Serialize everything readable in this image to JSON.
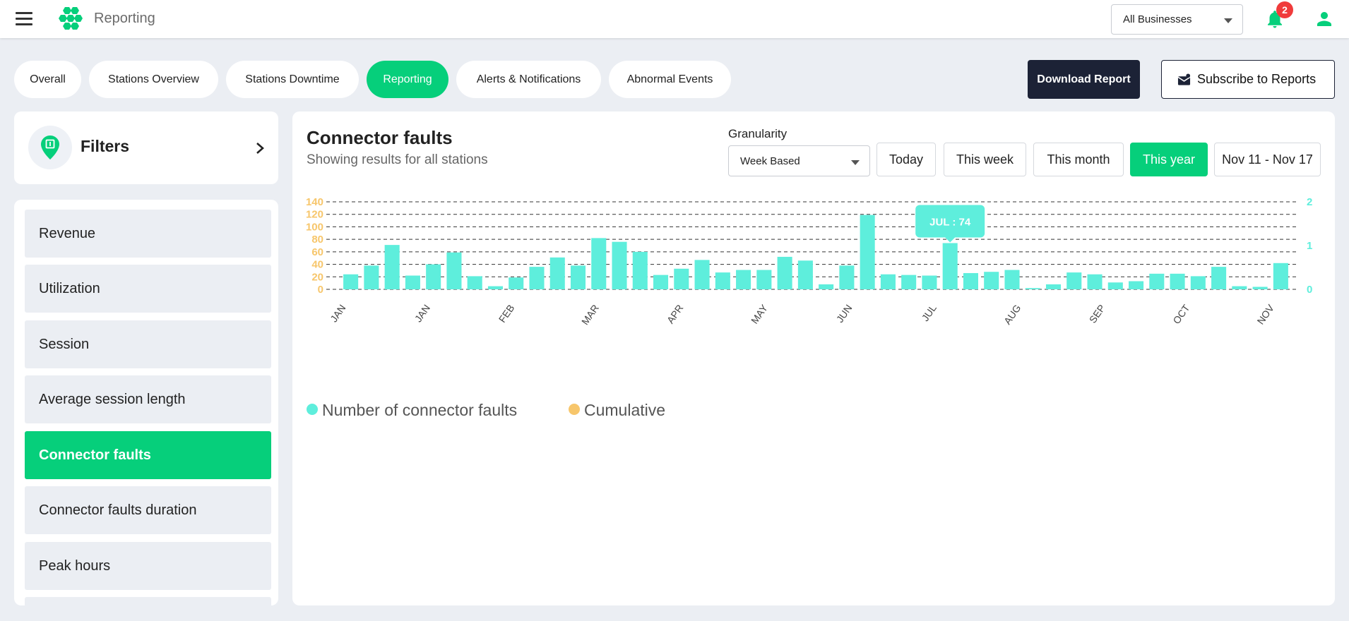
{
  "header": {
    "app_title": "Reporting",
    "business_select": "All Businesses",
    "notification_count": "2"
  },
  "tabs": [
    {
      "label": "Overall",
      "active": false
    },
    {
      "label": "Stations Overview",
      "active": false
    },
    {
      "label": "Stations Downtime",
      "active": false
    },
    {
      "label": "Reporting",
      "active": true
    },
    {
      "label": "Alerts & Notifications",
      "active": false
    },
    {
      "label": "Abnormal Events",
      "active": false
    }
  ],
  "actions": {
    "download_label": "Download Report",
    "subscribe_label": "Subscribe to Reports"
  },
  "filters": {
    "title": "Filters"
  },
  "reports": [
    {
      "label": "Revenue",
      "active": false
    },
    {
      "label": "Utilization",
      "active": false
    },
    {
      "label": "Session",
      "active": false
    },
    {
      "label": "Average session length",
      "active": false
    },
    {
      "label": "Connector faults",
      "active": true
    },
    {
      "label": "Connector faults duration",
      "active": false
    },
    {
      "label": "Peak hours",
      "active": false
    }
  ],
  "main": {
    "title": "Connector faults",
    "subtitle": "Showing results for all stations",
    "granularity_label": "Granularity",
    "granularity_value": "Week Based",
    "range_buttons": [
      {
        "label": "Today",
        "active": false
      },
      {
        "label": "This week",
        "active": false
      },
      {
        "label": "This month",
        "active": false
      },
      {
        "label": "This year",
        "active": true
      },
      {
        "label": "Nov 11 - Nov 17",
        "active": false
      }
    ]
  },
  "colors": {
    "accent": "#06cf7b",
    "bar": "#5eeedc",
    "cumulative": "#f7c66b",
    "dark": "#1c2236",
    "badge": "#f03b3b"
  },
  "chart_data": {
    "type": "bar",
    "title": "",
    "xlabel": "",
    "ylabel": "",
    "x_tick_labels": [
      "JAN",
      "JAN",
      "FEB",
      "MAR",
      "APR",
      "MAY",
      "JUN",
      "JUL",
      "AUG",
      "SEP",
      "OCT",
      "NOV"
    ],
    "ylim": [
      0,
      140
    ],
    "y_ticks": [
      0,
      20,
      40,
      60,
      80,
      100,
      120,
      140
    ],
    "y2lim": [
      0,
      2
    ],
    "y2_ticks": [
      0,
      1,
      2
    ],
    "grid": true,
    "legend_position": "bottom-left",
    "series": [
      {
        "name": "Number of connector faults",
        "color": "#5eeedc",
        "values": [
          24,
          38,
          71,
          22,
          40,
          59,
          21,
          5,
          19,
          36,
          51,
          38,
          82,
          76,
          60,
          23,
          33,
          47,
          27,
          31,
          31,
          52,
          46,
          8,
          38,
          119,
          24,
          23,
          22,
          74,
          26,
          28,
          31,
          2,
          8,
          27,
          24,
          11,
          13,
          25,
          25,
          21,
          36,
          5,
          4,
          42
        ]
      },
      {
        "name": "Cumulative",
        "color": "#f7c66b",
        "values": []
      }
    ],
    "tooltip": "JUL : 74"
  }
}
